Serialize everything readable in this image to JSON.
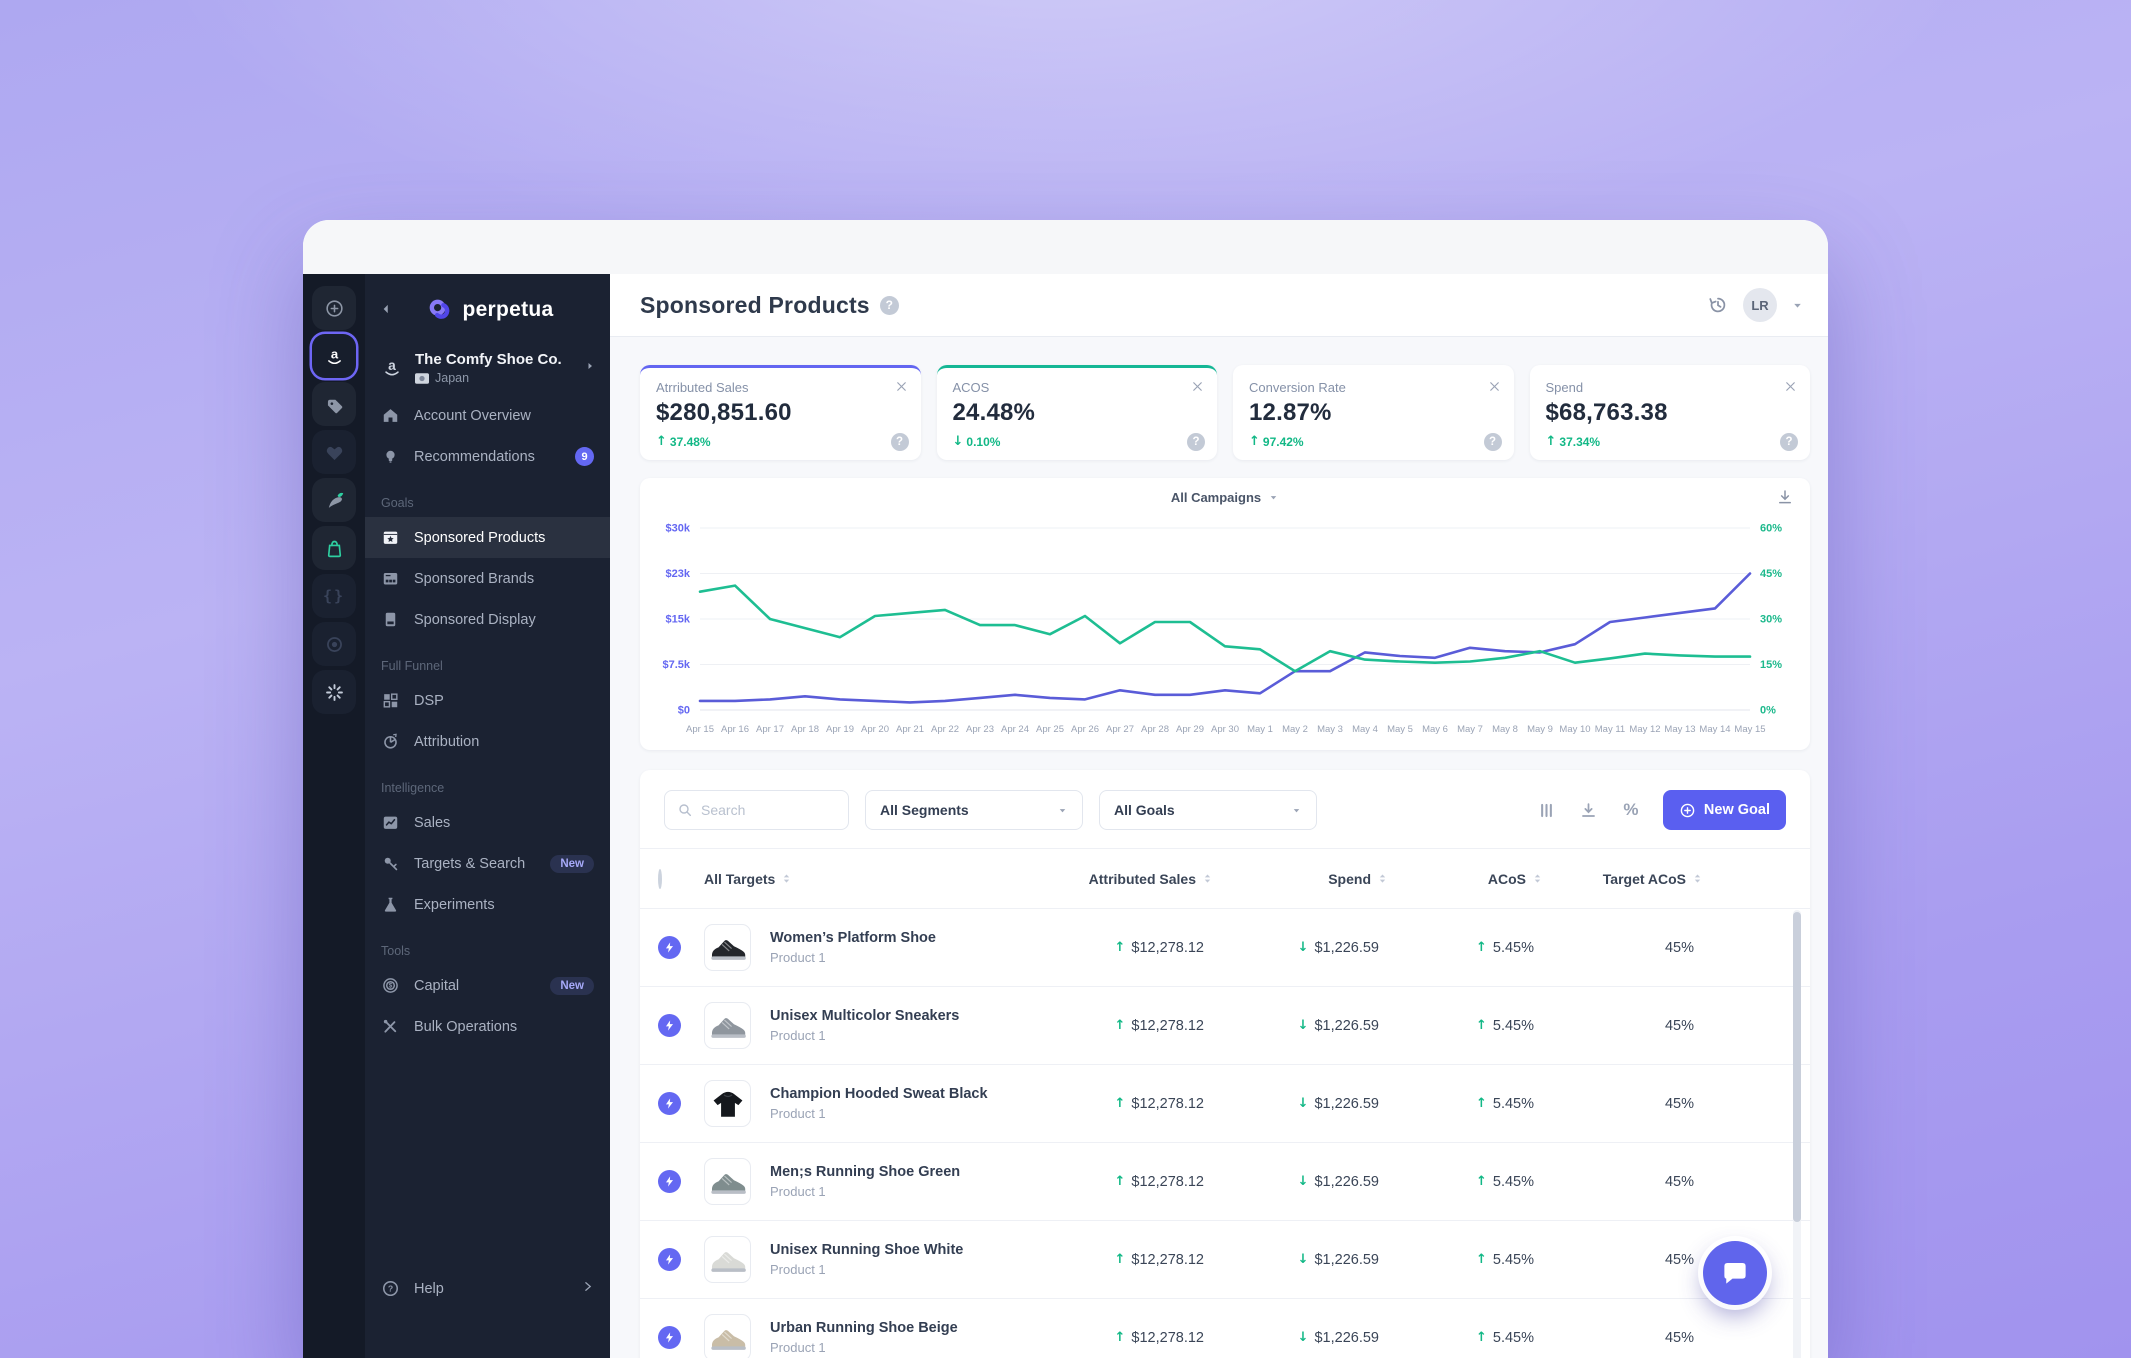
{
  "icon_rail": {
    "items": [
      {
        "icon": "plus-circle",
        "style": "default"
      },
      {
        "icon": "amazon",
        "style": "active"
      },
      {
        "icon": "tag",
        "style": "default"
      },
      {
        "icon": "heart",
        "style": "dim"
      },
      {
        "icon": "carrot",
        "style": "default"
      },
      {
        "icon": "bag",
        "style": "green"
      },
      {
        "icon": "brackets",
        "style": "dim"
      },
      {
        "icon": "target",
        "style": "dim"
      },
      {
        "icon": "spark",
        "style": "spark"
      }
    ]
  },
  "sidebar": {
    "logo_text": "perpetua",
    "account": {
      "name": "The Comfy Shoe Co.",
      "region": "Japan"
    },
    "items": [
      {
        "type": "item",
        "icon": "home",
        "label": "Account Overview"
      },
      {
        "type": "item",
        "icon": "bulb",
        "label": "Recommendations",
        "badge": "9"
      },
      {
        "type": "section",
        "label": "Goals"
      },
      {
        "type": "item",
        "icon": "star-box",
        "label": "Sponsored Products",
        "active": true
      },
      {
        "type": "item",
        "icon": "cards",
        "label": "Sponsored Brands"
      },
      {
        "type": "item",
        "icon": "display",
        "label": "Sponsored Display"
      },
      {
        "type": "section",
        "label": "Full Funnel"
      },
      {
        "type": "item",
        "icon": "grid",
        "label": "DSP"
      },
      {
        "type": "item",
        "icon": "pie",
        "label": "Attribution"
      },
      {
        "type": "section",
        "label": "Intelligence"
      },
      {
        "type": "item",
        "icon": "chart",
        "label": "Sales"
      },
      {
        "type": "item",
        "icon": "key",
        "label": "Targets & Search",
        "tag": "New"
      },
      {
        "type": "item",
        "icon": "flask",
        "label": "Experiments"
      },
      {
        "type": "section",
        "label": "Tools"
      },
      {
        "type": "item",
        "icon": "coin",
        "label": "Capital",
        "tag": "New"
      },
      {
        "type": "item",
        "icon": "wrench",
        "label": "Bulk Operations"
      }
    ],
    "help_label": "Help"
  },
  "header": {
    "title": "Sponsored Products",
    "avatar_initials": "LR"
  },
  "metric_cards": [
    {
      "label": "Atrributed Sales",
      "value": "$280,851.60",
      "delta": "37.48%",
      "delta_dir": "up",
      "accent": "#6366f1"
    },
    {
      "label": "ACOS",
      "value": "24.48%",
      "delta": "0.10%",
      "delta_dir": "down",
      "accent": "#15b795"
    },
    {
      "label": "Conversion Rate",
      "value": "12.87%",
      "delta": "97.42%",
      "delta_dir": "up",
      "accent": ""
    },
    {
      "label": "Spend",
      "value": "$68,763.38",
      "delta": "37.34%",
      "delta_dir": "up",
      "accent": ""
    }
  ],
  "chart": {
    "selector_label": "All Campaigns",
    "chart_data": {
      "type": "line",
      "x": [
        "Apr 15",
        "Apr 16",
        "Apr 17",
        "Apr 18",
        "Apr 19",
        "Apr 20",
        "Apr 21",
        "Apr 22",
        "Apr 23",
        "Apr 24",
        "Apr 25",
        "Apr 26",
        "Apr 27",
        "Apr 28",
        "Apr 29",
        "Apr 30",
        "May 1",
        "May 2",
        "May 3",
        "May 4",
        "May 5",
        "May 6",
        "May 7",
        "May 8",
        "May 9",
        "May 10",
        "May 11",
        "May 12",
        "May 13",
        "May 14",
        "May 15"
      ],
      "series": [
        {
          "name": "Attributed Sales",
          "color": "#1ebe92",
          "axis": "left",
          "values_usd_k": [
            19.5,
            20.5,
            15,
            13.5,
            12,
            15.5,
            16,
            16.5,
            14,
            14,
            12.5,
            15.5,
            11,
            14.5,
            14.5,
            10.5,
            10,
            6.4,
            9.7,
            8.3,
            8,
            7.8,
            8,
            8.6,
            9.7,
            7.8,
            8.5,
            9.3,
            9,
            8.8,
            8.8
          ]
        },
        {
          "name": "ACOS",
          "color": "#5a5cd8",
          "axis": "right",
          "values_pct": [
            3,
            3,
            3.5,
            4.5,
            3.5,
            3,
            2.5,
            3,
            4,
            5,
            4,
            3.5,
            6.5,
            5,
            5,
            6.5,
            5.5,
            12.8,
            12.8,
            19,
            17.8,
            17.2,
            20.5,
            19.4,
            19,
            21.7,
            29,
            30.5,
            32,
            33.5,
            45
          ]
        }
      ],
      "left_axis": {
        "labels": [
          "$30k",
          "$23k",
          "$15k",
          "$7.5k",
          "$0"
        ],
        "range_usd_k": [
          0,
          30
        ],
        "color": "#6467f2"
      },
      "right_axis": {
        "labels": [
          "60%",
          "45%",
          "30%",
          "15%",
          "0%"
        ],
        "range_pct": [
          0,
          60
        ],
        "color": "#1db98c"
      },
      "grid": "horizontal",
      "legend": "none"
    }
  },
  "table": {
    "search_placeholder": "Search",
    "filters": [
      {
        "label": "All Segments"
      },
      {
        "label": "All Goals"
      }
    ],
    "new_goal_label": "New Goal",
    "columns": [
      {
        "label": "All Targets"
      },
      {
        "label": "Attributed Sales"
      },
      {
        "label": "Spend"
      },
      {
        "label": "ACoS"
      },
      {
        "label": "Target ACoS"
      }
    ],
    "rows": [
      {
        "name": "Women’s Platform Shoe",
        "subtitle": "Product 1",
        "attributed_sales": "$12,278.12",
        "sales_dir": "up",
        "spend": "$1,226.59",
        "spend_dir": "down",
        "acos": "5.45%",
        "acos_dir": "up",
        "target_acos": "45%",
        "thumb": {
          "shape": "shoe",
          "color": "#23262b"
        }
      },
      {
        "name": "Unisex Multicolor Sneakers",
        "subtitle": "Product 1",
        "attributed_sales": "$12,278.12",
        "sales_dir": "up",
        "spend": "$1,226.59",
        "spend_dir": "down",
        "acos": "5.45%",
        "acos_dir": "up",
        "target_acos": "45%",
        "thumb": {
          "shape": "shoe",
          "color": "#8f969e"
        }
      },
      {
        "name": "Champion Hooded Sweat Black",
        "subtitle": "Product 1",
        "attributed_sales": "$12,278.12",
        "sales_dir": "up",
        "spend": "$1,226.59",
        "spend_dir": "down",
        "acos": "5.45%",
        "acos_dir": "up",
        "target_acos": "45%",
        "thumb": {
          "shape": "hoodie",
          "color": "#15181d"
        }
      },
      {
        "name": "Men;s Running Shoe Green",
        "subtitle": "Product 1",
        "attributed_sales": "$12,278.12",
        "sales_dir": "up",
        "spend": "$1,226.59",
        "spend_dir": "down",
        "acos": "5.45%",
        "acos_dir": "up",
        "target_acos": "45%",
        "thumb": {
          "shape": "shoe",
          "color": "#7f8d8e"
        }
      },
      {
        "name": "Unisex Running Shoe White",
        "subtitle": "Product 1",
        "attributed_sales": "$12,278.12",
        "sales_dir": "up",
        "spend": "$1,226.59",
        "spend_dir": "down",
        "acos": "5.45%",
        "acos_dir": "up",
        "target_acos": "45%",
        "thumb": {
          "shape": "shoe",
          "color": "#d9dad6"
        }
      },
      {
        "name": "Urban Running Shoe Beige",
        "subtitle": "Product 1",
        "attributed_sales": "$12,278.12",
        "sales_dir": "up",
        "spend": "$1,226.59",
        "spend_dir": "down",
        "acos": "5.45%",
        "acos_dir": "up",
        "target_acos": "45%",
        "thumb": {
          "shape": "shoe",
          "color": "#c9bda7"
        }
      }
    ]
  }
}
